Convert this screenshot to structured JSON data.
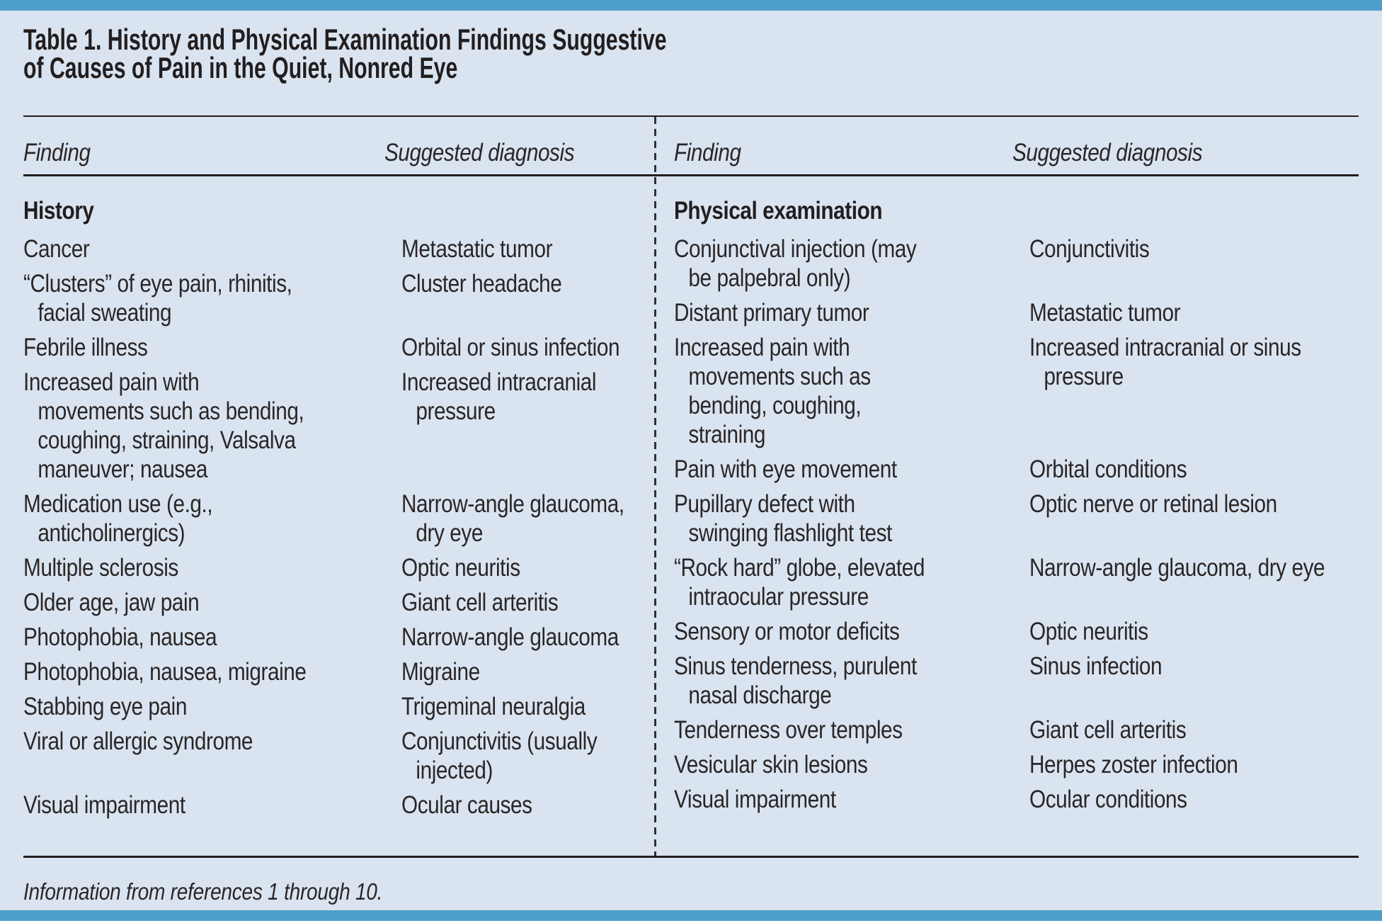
{
  "title": "Table 1. History and Physical Examination Findings Suggestive\nof Causes of Pain in the Quiet, Nonred Eye",
  "columns": {
    "finding": "Finding",
    "diagnosis": "Suggested diagnosis"
  },
  "left": {
    "section": "History",
    "rows": [
      {
        "finding": "Cancer",
        "diagnosis": "Metastatic tumor"
      },
      {
        "finding": "“Clusters” of eye pain, rhinitis,\nfacial sweating",
        "diagnosis": "Cluster headache"
      },
      {
        "finding": "Febrile illness",
        "diagnosis": "Orbital or sinus infection"
      },
      {
        "finding": "Increased pain with\nmovements such as bending,\ncoughing, straining, Valsalva\nmaneuver; nausea",
        "diagnosis": "Increased intracranial\npressure"
      },
      {
        "finding": "Medication use (e.g.,\nanticholinergics)",
        "diagnosis": "Narrow-angle glaucoma,\ndry eye"
      },
      {
        "finding": "Multiple sclerosis",
        "diagnosis": "Optic neuritis"
      },
      {
        "finding": "Older age, jaw pain",
        "diagnosis": "Giant cell arteritis"
      },
      {
        "finding": "Photophobia, nausea",
        "diagnosis": "Narrow-angle glaucoma"
      },
      {
        "finding": "Photophobia, nausea, migraine",
        "diagnosis": "Migraine"
      },
      {
        "finding": "Stabbing eye pain",
        "diagnosis": "Trigeminal neuralgia"
      },
      {
        "finding": "Viral or allergic syndrome",
        "diagnosis": "Conjunctivitis (usually\ninjected)"
      },
      {
        "finding": "Visual impairment",
        "diagnosis": "Ocular causes"
      }
    ]
  },
  "right": {
    "section": "Physical examination",
    "rows": [
      {
        "finding": "Conjunctival injection (may\nbe palpebral only)",
        "diagnosis": "Conjunctivitis"
      },
      {
        "finding": "Distant primary tumor",
        "diagnosis": "Metastatic tumor"
      },
      {
        "finding": "Increased pain with\nmovements such as\nbending, coughing,\nstraining",
        "diagnosis": "Increased intracranial or sinus\npressure"
      },
      {
        "finding": "Pain with eye movement",
        "diagnosis": "Orbital conditions"
      },
      {
        "finding": "Pupillary defect with\nswinging flashlight test",
        "diagnosis": "Optic nerve or retinal lesion"
      },
      {
        "finding": "“Rock hard” globe, elevated\nintraocular pressure",
        "diagnosis": "Narrow-angle glaucoma, dry eye"
      },
      {
        "finding": "Sensory or motor deficits",
        "diagnosis": "Optic neuritis"
      },
      {
        "finding": "Sinus tenderness, purulent\nnasal discharge",
        "diagnosis": "Sinus infection"
      },
      {
        "finding": "Tenderness over temples",
        "diagnosis": "Giant cell arteritis"
      },
      {
        "finding": "Vesicular skin lesions",
        "diagnosis": "Herpes zoster infection"
      },
      {
        "finding": "Visual impairment",
        "diagnosis": "Ocular conditions"
      }
    ]
  },
  "footnote": "Information from references 1 through 10.",
  "colors": {
    "accent_bar": "#4d9ec8",
    "panel_background": "#dae4f0",
    "text": "#2a2627",
    "rule": "#221e1f"
  }
}
